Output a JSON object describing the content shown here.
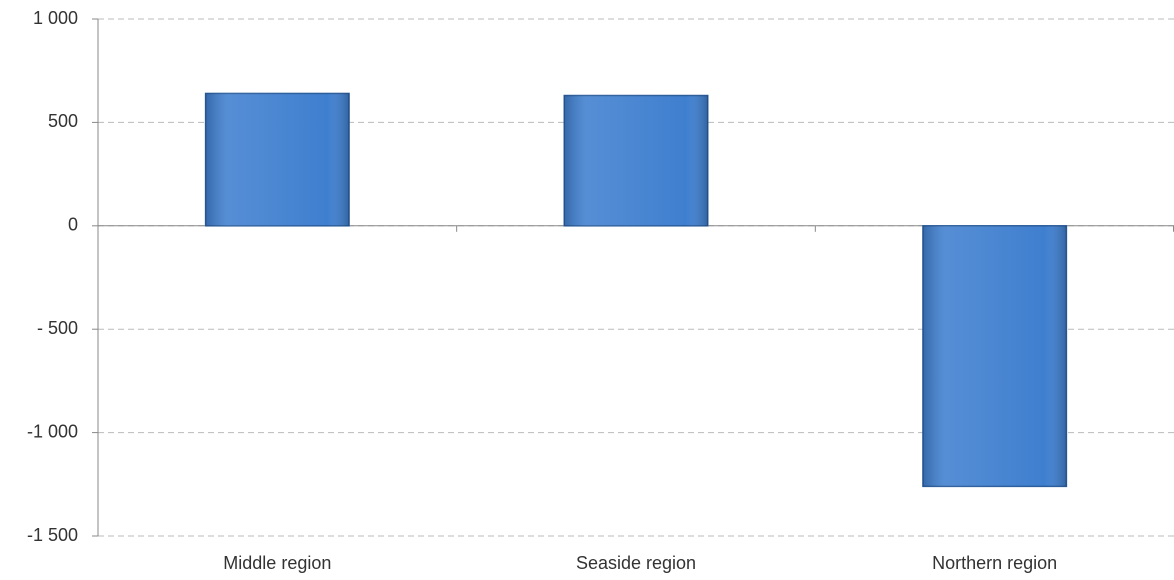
{
  "chart_data": {
    "type": "bar",
    "categories": [
      "Middle region",
      "Seaside region",
      "Northern region"
    ],
    "values": [
      640,
      630,
      -1260
    ],
    "color": "#3f7fcf",
    "ylim": [
      -1500,
      1000
    ],
    "yticks": [
      {
        "value": -1500,
        "label": "-1 500"
      },
      {
        "value": -1000,
        "label": "-1 000"
      },
      {
        "value": -500,
        "label": "- 500"
      },
      0,
      500,
      {
        "value": 1000,
        "label": "1 000"
      }
    ],
    "grid": true
  }
}
